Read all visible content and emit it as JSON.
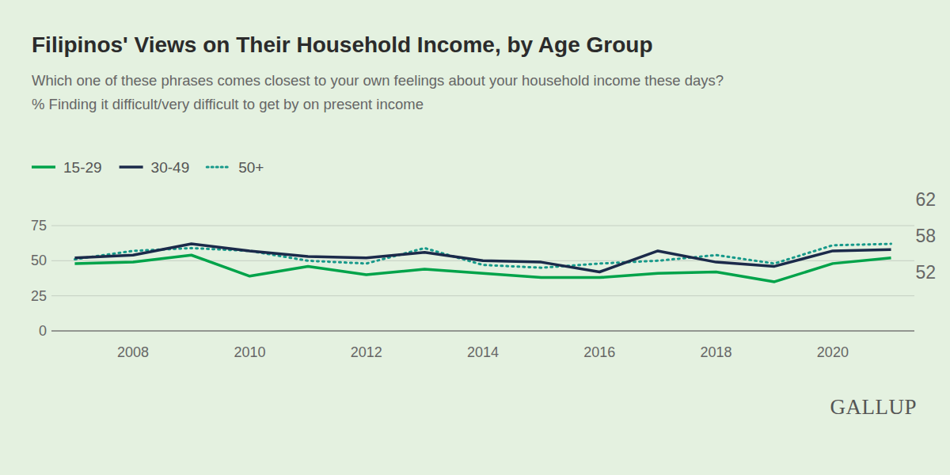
{
  "chart_data": {
    "type": "line",
    "title": "Filipinos' Views on Their Household Income, by Age Group",
    "subtitle": [
      "Which one of these phrases comes closest to your own feelings about your household income these days?",
      "% Finding it difficult/very difficult to get by on present income"
    ],
    "logo": "GALLUP",
    "x": [
      2007,
      2008,
      2009,
      2010,
      2011,
      2012,
      2013,
      2014,
      2015,
      2016,
      2017,
      2018,
      2019,
      2020,
      2021
    ],
    "xlim": [
      2006.6,
      2021.4
    ],
    "xticks": [
      2008,
      2010,
      2012,
      2014,
      2016,
      2018,
      2020
    ],
    "ylim": [
      0,
      75
    ],
    "yticks": [
      0,
      25,
      50,
      75
    ],
    "grid": true,
    "legend": "top-left",
    "data_labels": true,
    "series": [
      {
        "name": "15-29",
        "color": "#00a34a",
        "line_style": "solid",
        "values": [
          48,
          49,
          54,
          39,
          46,
          40,
          44,
          41,
          38,
          38,
          41,
          42,
          35,
          48,
          52
        ],
        "value_labels": [
          null,
          null,
          null,
          null,
          null,
          null,
          null,
          null,
          null,
          null,
          null,
          null,
          null,
          null,
          "52"
        ]
      },
      {
        "name": "30-49",
        "color": "#1b2a4a",
        "line_style": "solid",
        "values": [
          52,
          54,
          62,
          57,
          53,
          52,
          56,
          50,
          49,
          42,
          57,
          49,
          46,
          57,
          58
        ],
        "value_labels": [
          null,
          null,
          null,
          null,
          null,
          null,
          null,
          null,
          null,
          null,
          null,
          null,
          null,
          null,
          "58"
        ]
      },
      {
        "name": "50+",
        "color": "#17998a",
        "line_style": "dotted",
        "values": [
          51,
          57,
          59,
          57,
          50,
          48,
          59,
          47,
          45,
          48,
          50,
          54,
          48,
          61,
          62
        ],
        "value_labels": [
          null,
          null,
          null,
          null,
          null,
          null,
          null,
          null,
          null,
          null,
          null,
          null,
          null,
          null,
          "62"
        ]
      }
    ]
  }
}
